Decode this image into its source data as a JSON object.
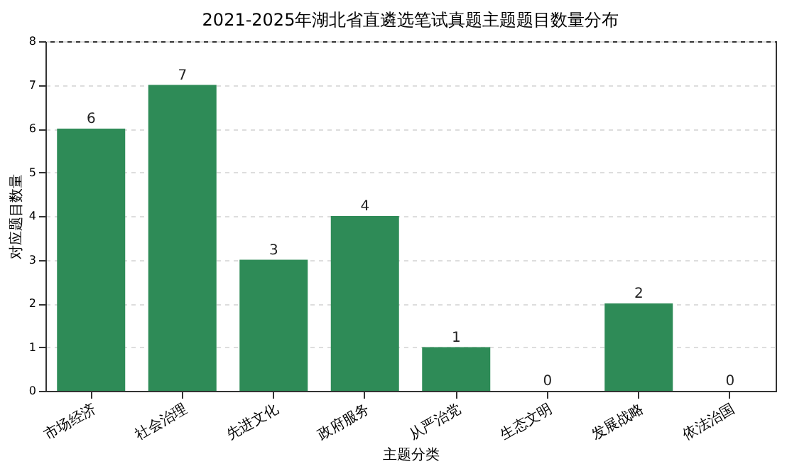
{
  "chart_data": {
    "type": "bar",
    "title": "2021-2025年湖北省直遴选笔试真题主题题目数量分布",
    "xlabel": "主题分类",
    "ylabel": "对应题目数量",
    "categories": [
      "市场经济",
      "社会治理",
      "先进文化",
      "政府服务",
      "从严治党",
      "生态文明",
      "发展战略",
      "依法治国"
    ],
    "values": [
      6,
      7,
      3,
      4,
      1,
      0,
      2,
      0
    ],
    "color": "#2e8b57",
    "ylim": [
      0,
      8
    ],
    "yticks": [
      0,
      1,
      2,
      3,
      4,
      5,
      6,
      7,
      8
    ],
    "grid": "y",
    "data_labels": true
  }
}
